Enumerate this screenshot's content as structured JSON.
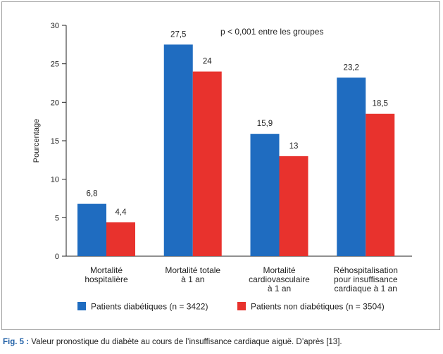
{
  "chart_data": {
    "type": "bar",
    "ylabel": "Pourcentage",
    "ylim": [
      0,
      30
    ],
    "yticks": [
      0,
      5,
      10,
      15,
      20,
      25,
      30
    ],
    "grid": false,
    "categories": [
      [
        "Mortalité",
        "hospitalière"
      ],
      [
        "Mortalité totale",
        "à 1 an"
      ],
      [
        "Mortalité",
        "cardiovasculaire",
        "à 1 an"
      ],
      [
        "Réhospitalisation",
        "pour insuffisance",
        "cardiaque à 1 an"
      ]
    ],
    "series": [
      {
        "name": "Patients diabétiques (n = 3422)",
        "color": "#1f6cc0",
        "values": [
          6.8,
          27.5,
          15.9,
          23.2
        ],
        "labels": [
          "6,8",
          "27,5",
          "15,9",
          "23,2"
        ]
      },
      {
        "name": "Patients non diabétiques (n = 3504)",
        "color": "#e8322d",
        "values": [
          4.4,
          24,
          13,
          18.5
        ],
        "labels": [
          "4,4",
          "24",
          "13",
          "18,5"
        ]
      }
    ],
    "annotation": "p < 0,001 entre les groupes",
    "legend_position": "bottom"
  },
  "caption": {
    "label": "Fig. 5 :",
    "text": " Valeur pronostique du diabète au cours de l’insuffisance cardiaque aiguë. D’après [13]."
  }
}
